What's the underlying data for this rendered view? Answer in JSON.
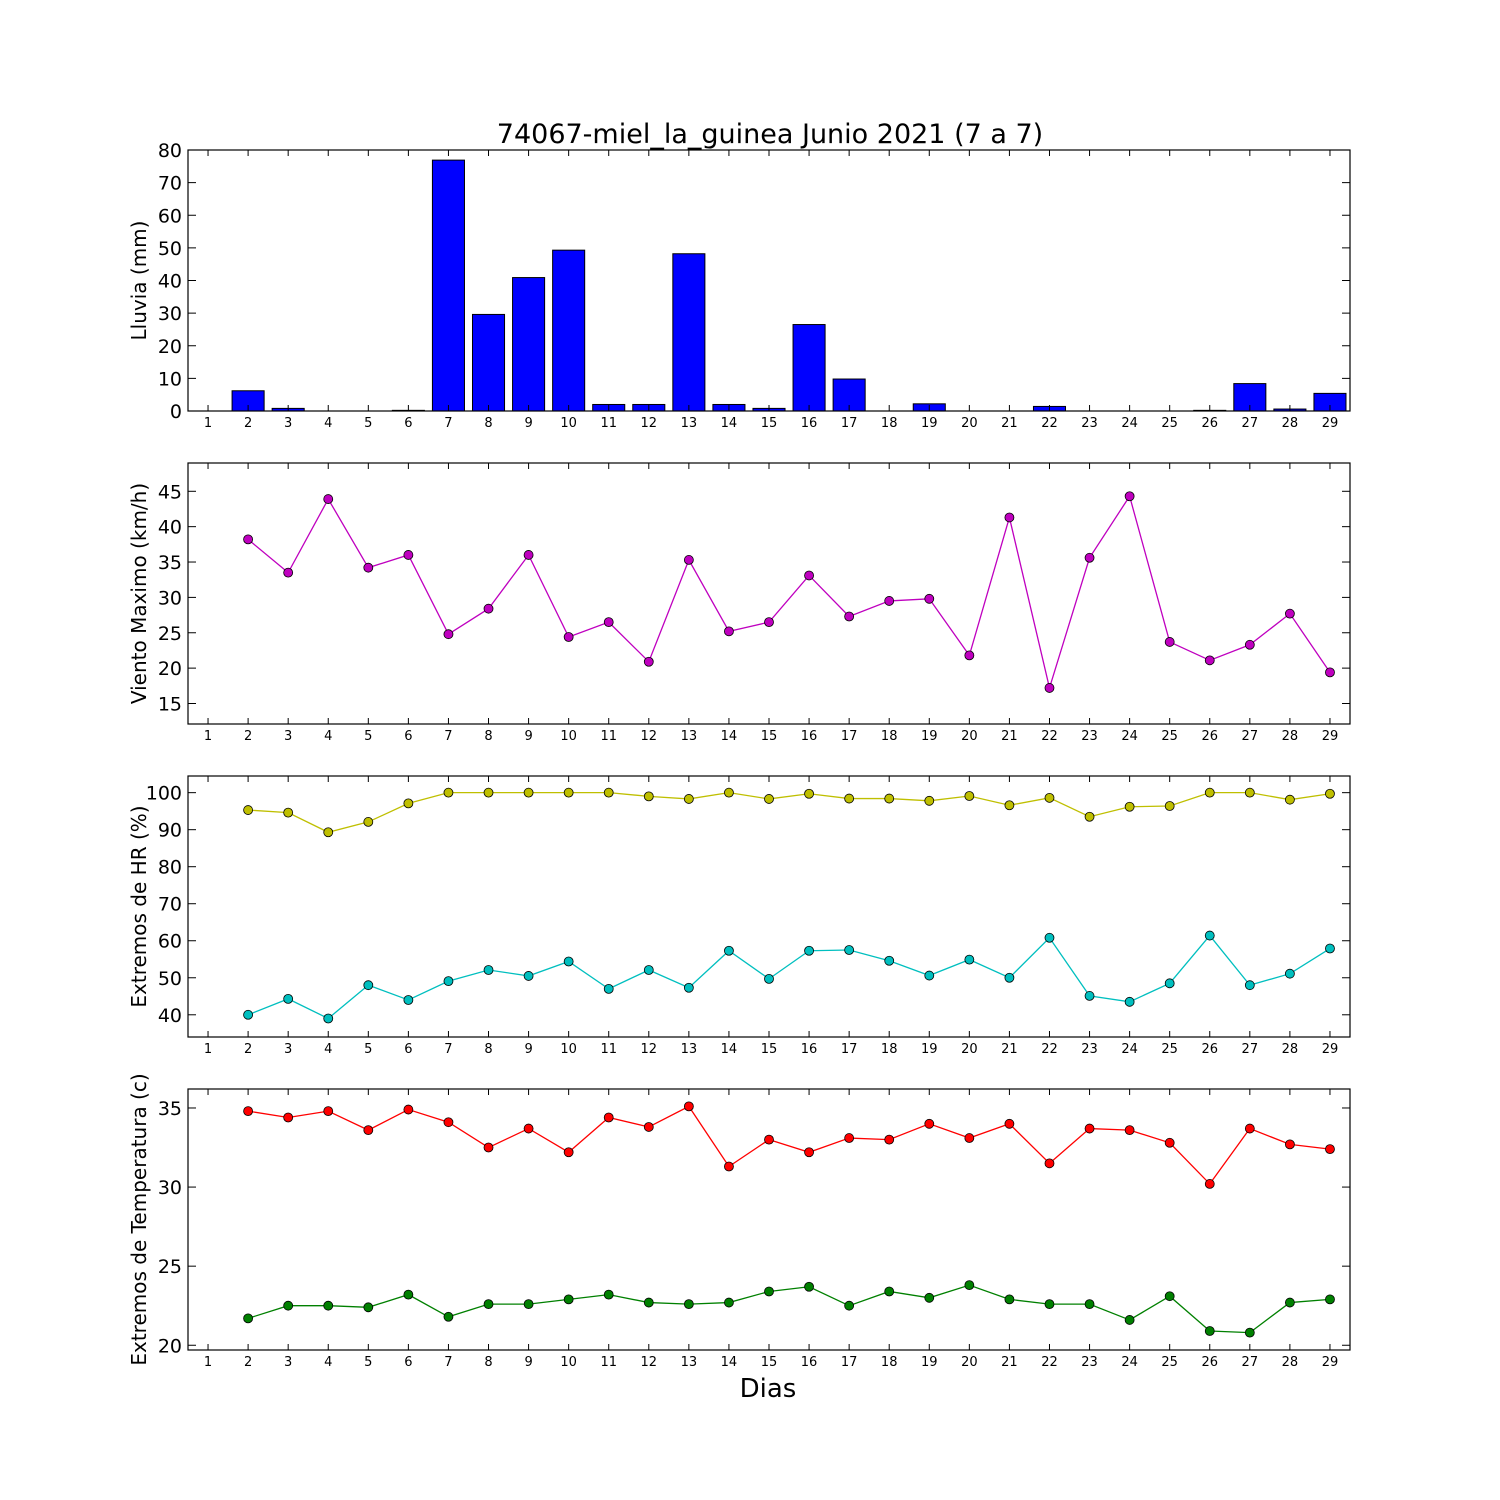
{
  "title": "74067-miel_la_guinea Junio 2021  (7 a 7)",
  "xlabel": "Dias",
  "chart_data": [
    {
      "type": "bar",
      "ylabel": "Lluvia (mm)",
      "ylim": [
        0,
        80
      ],
      "yticks": [
        0,
        10,
        20,
        30,
        40,
        50,
        60,
        70,
        80
      ],
      "x": [
        1,
        2,
        3,
        4,
        5,
        6,
        7,
        8,
        9,
        10,
        11,
        12,
        13,
        14,
        15,
        16,
        17,
        18,
        19,
        20,
        21,
        22,
        23,
        24,
        25,
        26,
        27,
        28,
        29
      ],
      "series": [
        {
          "color": "#0000ff",
          "values": [
            0,
            6.2,
            0.8,
            0,
            0,
            0.2,
            76.9,
            29.6,
            40.9,
            49.3,
            2,
            2,
            48.2,
            2,
            0.8,
            26.5,
            9.8,
            0,
            2.2,
            0,
            0,
            1.4,
            0,
            0,
            0,
            0.2,
            8.4,
            0.6,
            5.4
          ]
        }
      ]
    },
    {
      "type": "line",
      "ylabel": "Viento Maximo (km/h)",
      "ylim": [
        12.1,
        49
      ],
      "yticks": [
        15,
        20,
        25,
        30,
        35,
        40,
        45
      ],
      "x": [
        2,
        3,
        4,
        5,
        6,
        7,
        8,
        9,
        10,
        11,
        12,
        13,
        14,
        15,
        16,
        17,
        18,
        19,
        20,
        21,
        22,
        23,
        24,
        25,
        26,
        27,
        28,
        29
      ],
      "series": [
        {
          "color": "#bf00bf",
          "values": [
            38.2,
            33.5,
            43.9,
            34.2,
            36,
            24.8,
            28.4,
            36,
            24.4,
            26.5,
            20.9,
            35.3,
            25.2,
            26.5,
            33.1,
            27.3,
            29.5,
            29.8,
            21.8,
            41.3,
            17.2,
            35.6,
            44.3,
            23.7,
            21.1,
            23.3,
            27.7,
            19.4
          ]
        }
      ]
    },
    {
      "type": "line",
      "ylabel": "Extremos de HR (%)",
      "ylim": [
        34,
        104.5
      ],
      "yticks": [
        40,
        50,
        60,
        70,
        80,
        90,
        100
      ],
      "x": [
        2,
        3,
        4,
        5,
        6,
        7,
        8,
        9,
        10,
        11,
        12,
        13,
        14,
        15,
        16,
        17,
        18,
        19,
        20,
        21,
        22,
        23,
        24,
        25,
        26,
        27,
        28,
        29
      ],
      "series": [
        {
          "color": "#bfbf00",
          "values": [
            95.3,
            94.6,
            89.3,
            92.1,
            97.1,
            100,
            100,
            100,
            100,
            100,
            99,
            98.3,
            100,
            98.3,
            99.7,
            98.4,
            98.4,
            97.8,
            99.1,
            96.6,
            98.6,
            93.5,
            96.2,
            96.4,
            100,
            100,
            98.1,
            99.7
          ]
        },
        {
          "color": "#00bfbf",
          "values": [
            40,
            44.3,
            39,
            48,
            44,
            49.1,
            52.1,
            50.5,
            54.4,
            47,
            52.1,
            47.3,
            57.3,
            49.7,
            57.3,
            57.5,
            54.6,
            50.6,
            54.9,
            50,
            60.8,
            45.1,
            43.5,
            48.5,
            61.4,
            48,
            51.1,
            57.9
          ]
        }
      ]
    },
    {
      "type": "line",
      "ylabel": "Extremos de Temperatura (c)",
      "ylim": [
        19.7,
        36.2
      ],
      "yticks": [
        20,
        25,
        30,
        35
      ],
      "x": [
        2,
        3,
        4,
        5,
        6,
        7,
        8,
        9,
        10,
        11,
        12,
        13,
        14,
        15,
        16,
        17,
        18,
        19,
        20,
        21,
        22,
        23,
        24,
        25,
        26,
        27,
        28,
        29
      ],
      "series": [
        {
          "color": "#ff0000",
          "values": [
            34.8,
            34.4,
            34.8,
            33.6,
            34.9,
            34.1,
            32.5,
            33.7,
            32.2,
            34.4,
            33.8,
            35.1,
            31.3,
            33,
            32.2,
            33.1,
            33,
            34,
            33.1,
            34,
            31.5,
            33.7,
            33.6,
            32.8,
            30.2,
            33.7,
            32.7,
            32.4
          ]
        },
        {
          "color": "#008000",
          "values": [
            21.7,
            22.5,
            22.5,
            22.4,
            23.2,
            21.8,
            22.6,
            22.6,
            22.9,
            23.2,
            22.7,
            22.6,
            22.7,
            23.4,
            23.7,
            22.5,
            23.4,
            23,
            23.8,
            22.9,
            22.6,
            22.6,
            21.6,
            23.1,
            20.9,
            20.8,
            22.7,
            22.9
          ]
        }
      ]
    }
  ]
}
